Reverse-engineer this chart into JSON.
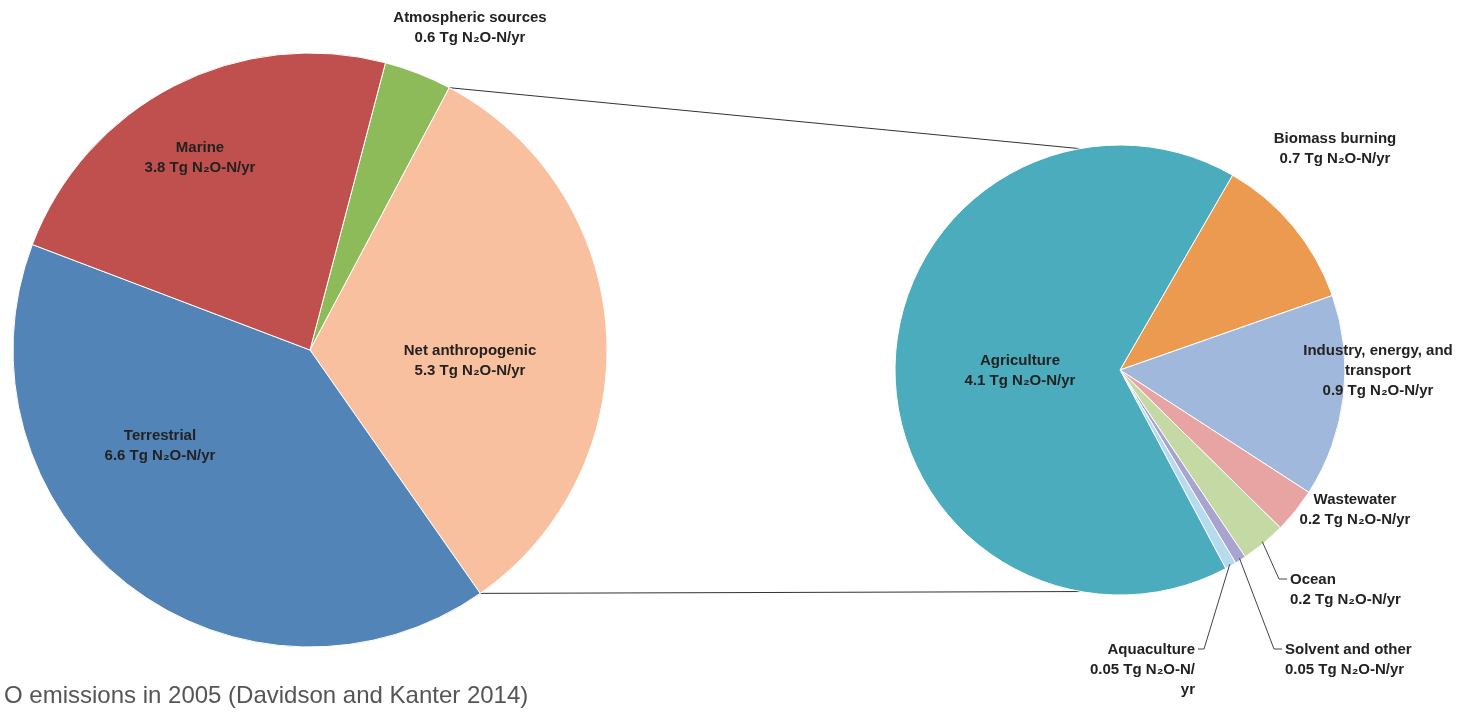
{
  "chart_data": [
    {
      "type": "pie",
      "categories": [
        "Atmospheric sources",
        "Net anthropogenic",
        "Terrestrial",
        "Marine"
      ],
      "values": [
        0.6,
        5.3,
        6.6,
        3.8
      ],
      "colors": [
        "#8dbb5a",
        "#f9c0a0",
        "#5284b8",
        "#c0504d"
      ],
      "value_labels": [
        "0.6 Tg N₂O-N/yr",
        "5.3 Tg N₂O-N/yr",
        "6.6 Tg N₂O-N/yr",
        "3.8 Tg N₂O-N/yr"
      ],
      "annotations": [
        "O emissions in 2005 (Davidson and Kanter 2014)"
      ]
    },
    {
      "type": "pie",
      "categories": [
        "Biomass burning",
        "Industry, energy, and transport",
        "Wastewater",
        "Ocean",
        "Solvent and other",
        "Aquaculture",
        "Agriculture"
      ],
      "values": [
        0.7,
        0.9,
        0.2,
        0.2,
        0.05,
        0.05,
        4.1
      ],
      "colors": [
        "#eb9a4f",
        "#a0b8dc",
        "#e8a3a3",
        "#c4d9a3",
        "#a8a3cf",
        "#b7dbee",
        "#4aacbd"
      ],
      "value_labels": [
        "0.7 Tg N₂O-N/yr",
        "0.9 Tg N₂O-N/yr",
        "0.2 Tg N₂O-N/yr",
        "0.2 Tg N₂O-N/yr",
        "0.05 Tg N₂O-N/yr",
        "0.05 Tg N₂O-N/yr",
        "4.1 Tg N₂O-N/yr"
      ]
    }
  ]
}
